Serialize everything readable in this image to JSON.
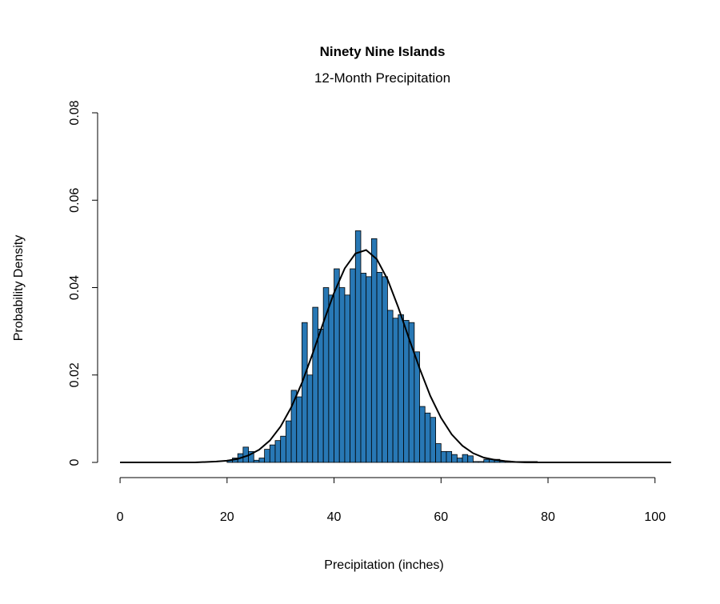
{
  "chart_data": {
    "type": "histogram",
    "title": "Ninety Nine Islands",
    "subtitle": "12-Month Precipitation",
    "x_label": "Precipitation (inches)",
    "y_label": "Probability Density",
    "bins": [
      20,
      21,
      22,
      23,
      24,
      25,
      26,
      27,
      28,
      29,
      30,
      31,
      32,
      33,
      34,
      35,
      36,
      37,
      38,
      39,
      40,
      41,
      42,
      43,
      44,
      45,
      46,
      47,
      48,
      49,
      50,
      51,
      52,
      53,
      54,
      55,
      56,
      57,
      58,
      59,
      60,
      61,
      62,
      63,
      64,
      65,
      66,
      67,
      68,
      69,
      70,
      71,
      72,
      73,
      74,
      75,
      76,
      77,
      78
    ],
    "values": [
      0.0005,
      0.001,
      0.002,
      0.0035,
      0.0025,
      0.0005,
      0.001,
      0.003,
      0.004,
      0.005,
      0.006,
      0.0095,
      0.0165,
      0.015,
      0.032,
      0.02,
      0.0355,
      0.0305,
      0.04,
      0.0383,
      0.0443,
      0.04,
      0.0383,
      0.0443,
      0.053,
      0.0433,
      0.0425,
      0.0512,
      0.0435,
      0.0425,
      0.0348,
      0.033,
      0.0338,
      0.0325,
      0.032,
      0.0253,
      0.0128,
      0.0113,
      0.0103,
      0.0043,
      0.0025,
      0.0025,
      0.0018,
      0.001,
      0.0018,
      0.0015,
      0.0002,
      0.0002,
      0.0007,
      0.0007,
      0.0007,
      0.0003,
      0.0003,
      0.0002,
      0.0002,
      0.0002,
      0.0002,
      0.0002
    ],
    "color": "#2878b5",
    "density_curve": {
      "color": "#000000",
      "x": [
        0,
        10,
        14,
        16,
        18,
        20,
        22,
        24,
        26,
        28,
        30,
        32,
        34,
        36,
        38,
        40,
        42,
        44,
        46,
        48,
        50,
        52,
        54,
        56,
        58,
        60,
        62,
        64,
        66,
        68,
        70,
        72,
        74,
        76,
        80,
        90,
        103
      ],
      "y": [
        0,
        0,
        0,
        0.0001,
        0.0002,
        0.0004,
        0.0008,
        0.0016,
        0.0029,
        0.005,
        0.0082,
        0.0126,
        0.0182,
        0.0249,
        0.032,
        0.0388,
        0.0444,
        0.0478,
        0.0486,
        0.0465,
        0.0419,
        0.0355,
        0.0284,
        0.0215,
        0.0152,
        0.0102,
        0.0064,
        0.0038,
        0.0021,
        0.0011,
        0.0006,
        0.0003,
        0.0001,
        0,
        0,
        0,
        0
      ]
    },
    "xlim": [
      -4.2,
      104
    ],
    "ylim": [
      0,
      0.08
    ],
    "xticks": [
      0,
      20,
      40,
      60,
      80,
      100
    ],
    "yticks": [
      0,
      0.02,
      0.04,
      0.06,
      0.08
    ]
  }
}
